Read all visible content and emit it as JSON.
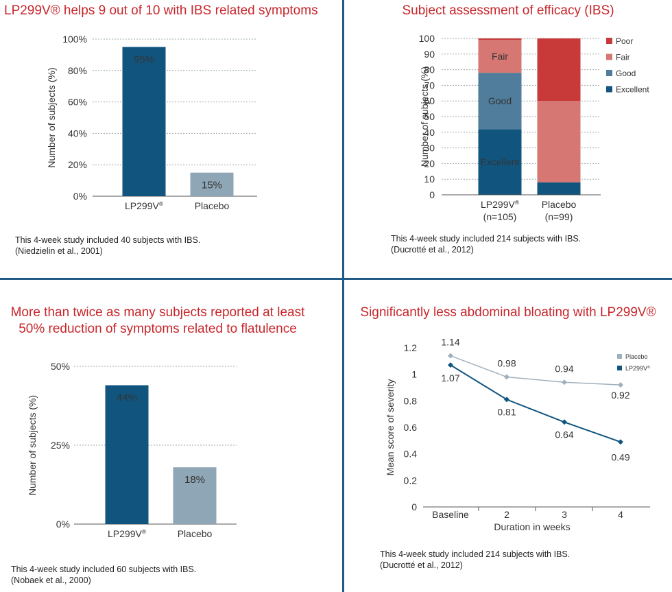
{
  "colors": {
    "title_red": "#c8262b",
    "dark_blue": "#11557f",
    "grey_blue": "#8fa6b6",
    "poor": "#c8393a",
    "fair": "#d67774",
    "good": "#4f7d9b",
    "excellent": "#11557f",
    "placebo_line": "#9fb0bd",
    "lp_line": "#11557f",
    "divider": "#1f5b86"
  },
  "panels": {
    "p1": {
      "title": "LP299V® helps 9 out of 10 with IBS related symptoms",
      "note_line1": "This 4-week study included 40 subjects with IBS.",
      "note_line2": "(Niedzielin et al., 2001)"
    },
    "p2": {
      "title": "Subject assessment of efficacy (IBS)",
      "note_line1": "This 4-week study included 214 subjects with IBS.",
      "note_line2": "(Ducrotté et al., 2012)"
    },
    "p3": {
      "title_line1": "More than twice as many subjects reported at least",
      "title_line2": "50% reduction of symptoms related to flatulence",
      "note_line1": "This 4-week study included 60 subjects with IBS.",
      "note_line2": "(Nobaek et al., 2000)"
    },
    "p4": {
      "title": "Significantly less abdominal bloating with LP299V®",
      "note_line1": "This 4-week study included 214 subjects with IBS.",
      "note_line2": "(Ducrotté et al., 2012)"
    }
  },
  "chart_data": [
    {
      "type": "bar",
      "title": "LP299V® helps 9 out of 10 with IBS related symptoms",
      "categories": [
        "LP299V®",
        "Placebo"
      ],
      "values": [
        95,
        15
      ],
      "value_labels": [
        "95%",
        "15%"
      ],
      "ylabel": "Number of subjects (%)",
      "ylim": [
        0,
        100
      ],
      "yticks": [
        0,
        20,
        40,
        60,
        80,
        100
      ],
      "ytick_labels": [
        "0%",
        "20%",
        "40%",
        "60%",
        "80%",
        "100%"
      ],
      "grid": true
    },
    {
      "type": "bar",
      "stacked": true,
      "title": "Subject assessment of efficacy (IBS)",
      "categories": [
        "LP299V®",
        "Placebo"
      ],
      "category_sublabels": [
        "(n=105)",
        "(n=99)"
      ],
      "series": [
        {
          "name": "Excellent",
          "values": [
            42,
            8
          ],
          "label": "Excellent"
        },
        {
          "name": "Good",
          "values": [
            36,
            0
          ],
          "label": "Good"
        },
        {
          "name": "Fair",
          "values": [
            21,
            52
          ],
          "label": "Fair"
        },
        {
          "name": "Poor",
          "values": [
            1,
            40
          ],
          "label": ""
        }
      ],
      "legend": [
        "Poor",
        "Fair",
        "Good",
        "Excellent"
      ],
      "legend_position": "right",
      "ylabel": "Number of subjects (%)",
      "ylim": [
        0,
        100
      ],
      "yticks": [
        0,
        10,
        20,
        30,
        40,
        50,
        60,
        70,
        80,
        90,
        100
      ],
      "grid": true
    },
    {
      "type": "bar",
      "title": "More than twice as many subjects reported at least 50% reduction of symptoms related to flatulence",
      "categories": [
        "LP299V®",
        "Placebo"
      ],
      "values": [
        44,
        18
      ],
      "value_labels": [
        "44%",
        "18%"
      ],
      "ylabel": "Number of subjects (%)",
      "ylim": [
        0,
        50
      ],
      "yticks": [
        0,
        25,
        50
      ],
      "ytick_labels": [
        "0%",
        "25%",
        "50%"
      ],
      "grid": true
    },
    {
      "type": "line",
      "title": "Significantly less abdominal bloating with LP299V®",
      "x": [
        "Baseline",
        "2",
        "3",
        "4"
      ],
      "series": [
        {
          "name": "Placebo",
          "values": [
            1.14,
            0.98,
            0.94,
            0.92
          ],
          "labels": [
            "1.14",
            "0.98",
            "0.94",
            "0.92"
          ]
        },
        {
          "name": "LP299V®",
          "values": [
            1.07,
            0.81,
            0.64,
            0.49
          ],
          "labels": [
            "1.07",
            "0.81",
            "0.64",
            "0.49"
          ]
        }
      ],
      "xlabel": "Duration in weeks",
      "ylabel": "Mean score of severity",
      "ylim": [
        0,
        1.2
      ],
      "yticks": [
        0,
        0.2,
        0.4,
        0.6,
        0.8,
        1,
        1.2
      ],
      "ytick_labels": [
        "0",
        "0.2",
        "0.4",
        "0.6",
        "0.8",
        "1",
        "1.2"
      ],
      "legend_position": "top-right",
      "grid": false
    }
  ]
}
